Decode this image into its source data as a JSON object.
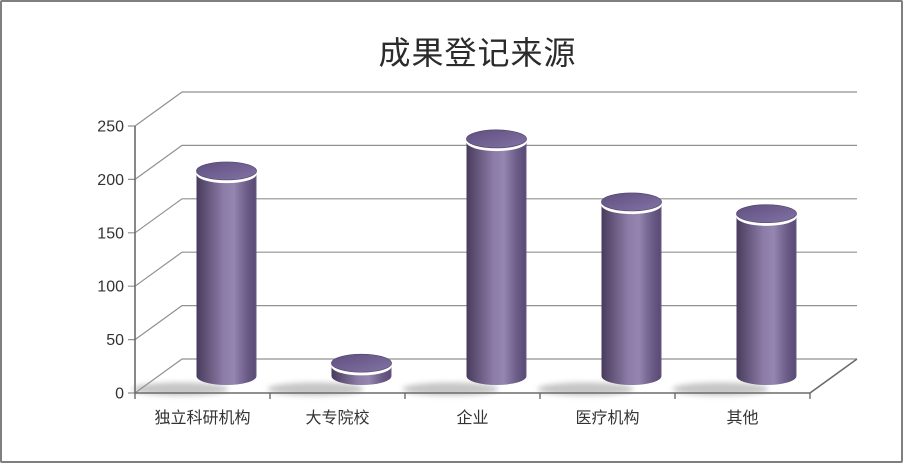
{
  "chart_data": {
    "type": "bar",
    "subtype": "3d-cylinder",
    "title": "成果登记来源",
    "categories": [
      "独立科研机构",
      "大专院校",
      "企业",
      "医疗机构",
      "其他"
    ],
    "values": [
      192,
      12,
      222,
      163,
      152
    ],
    "yticks": [
      0,
      50,
      100,
      150,
      200,
      250
    ],
    "ylim": [
      0,
      250
    ],
    "xlabel": "",
    "ylabel": "",
    "grid": true,
    "legend_position": "none",
    "colors": {
      "bar_edge_dark": "#473a5c",
      "bar_side_dark": "#554769",
      "bar_body_light": "#9486b0",
      "bar_body_mid": "#8c7ca8",
      "bar_right_dark": "#5b4c77",
      "bar_top_dark": "#5f4f80",
      "bar_top_light": "#8373a5",
      "rim_highlight": "#ffffff",
      "shadow": "#8c8c8c",
      "gridline": "#919191",
      "axis": "#6b6b6b",
      "title_text": "#2b2b2b",
      "label_text": "#333333",
      "frame_border": "#7f7f7f",
      "background": "#ffffff"
    }
  }
}
